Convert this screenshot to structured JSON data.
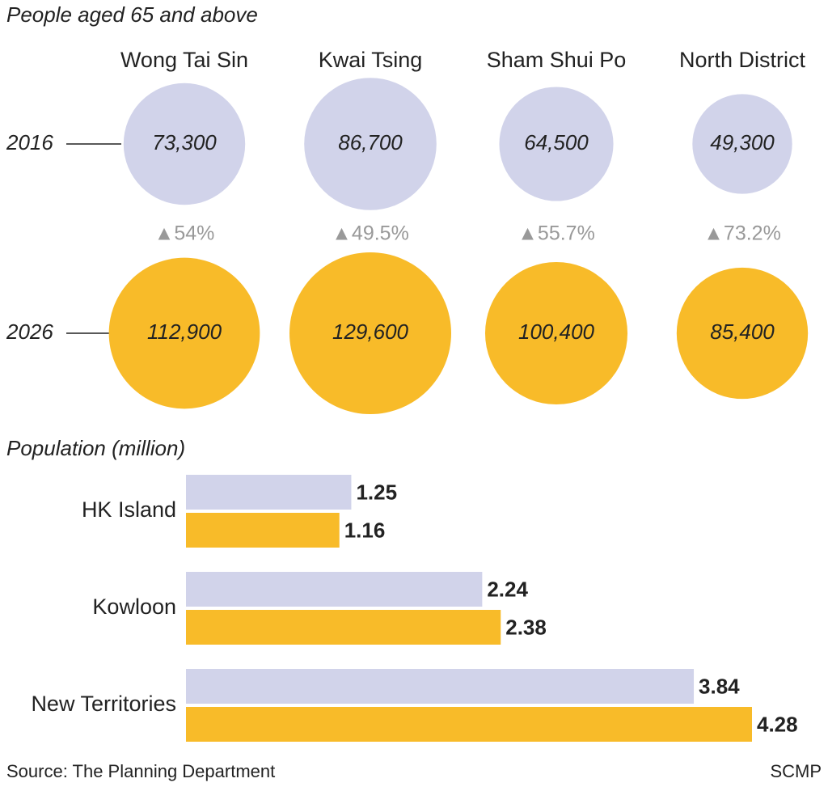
{
  "chart_data": [
    {
      "type": "bubble",
      "title": "People aged 65 and above",
      "categories": [
        "Wong Tai Sin",
        "Kwai Tsing",
        "Sham Shui Po",
        "North District"
      ],
      "series": [
        {
          "name": "2016",
          "color": "#d1d3ea",
          "values": [
            73300,
            86700,
            64500,
            49300
          ],
          "value_labels": [
            "73,300",
            "86,700",
            "64,500",
            "49,300"
          ]
        },
        {
          "name": "2026",
          "color": "#f8bb29",
          "values": [
            112900,
            129600,
            100400,
            85400
          ],
          "value_labels": [
            "112,900",
            "129,600",
            "100,400",
            "85,400"
          ]
        }
      ],
      "annotations": [
        "▲54%",
        "▲49.5%",
        "▲55.7%",
        "▲73.2%"
      ]
    },
    {
      "type": "hbar",
      "title": "Population (million)",
      "categories": [
        "HK Island",
        "Kowloon",
        "New Territories"
      ],
      "series": [
        {
          "color": "#d1d3ea",
          "values": [
            1.25,
            2.24,
            3.84
          ]
        },
        {
          "color": "#f8bb29",
          "values": [
            1.16,
            2.38,
            4.28
          ]
        }
      ]
    }
  ],
  "source": "Source: The Planning Department",
  "credit": "SCMP"
}
